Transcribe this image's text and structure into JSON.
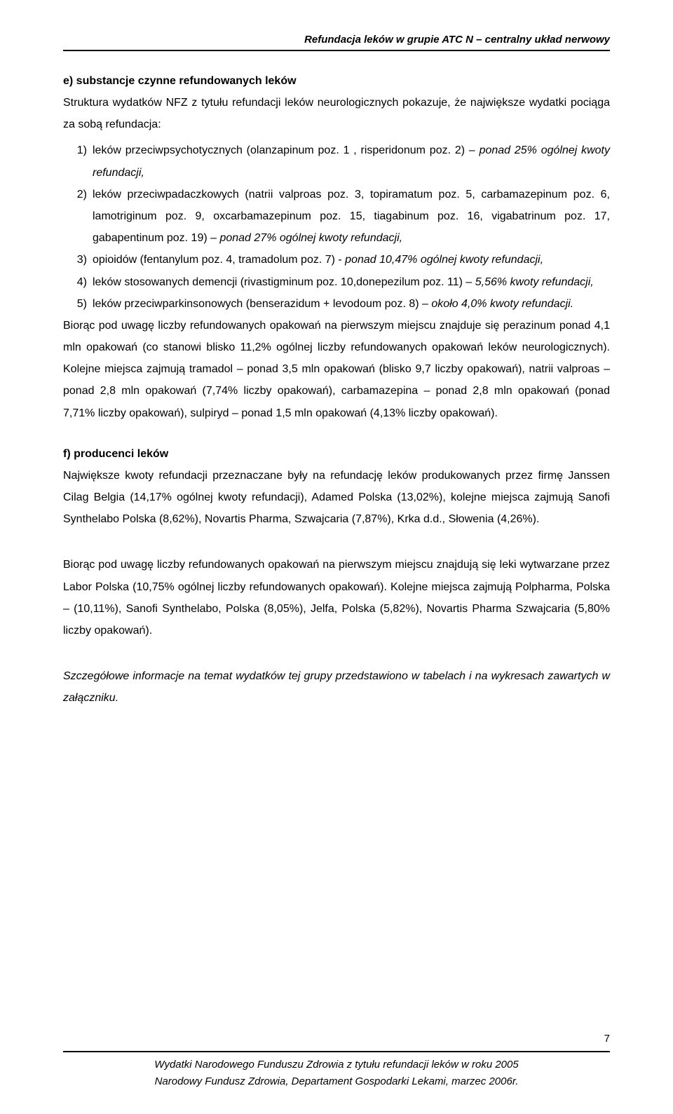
{
  "header": {
    "running_title": "Refundacja leków w grupie ATC N – centralny układ nerwowy"
  },
  "section_e": {
    "title": "e) substancje czynne refundowanych leków",
    "intro": "Struktura wydatków NFZ z tytułu refundacji leków neurologicznych pokazuje, że największe wydatki pociąga za sobą refundacja:",
    "items": [
      {
        "num": "1)",
        "text_a": "leków przeciwpsychotycznych (olanzapinum poz. 1 , risperidonum poz. 2) –",
        "italic_a": " ponad 25% ogólnej kwoty refundacji,"
      },
      {
        "num": "2)",
        "text_a": "leków przeciwpadaczkowych (natrii valproas poz. 3, topiramatum poz. 5, carbamazepinum poz. 6, lamotriginum poz. 9, oxcarbamazepinum poz. 15, tiagabinum poz. 16, vigabatrinum poz. 17, gabapentinum poz. 19) –",
        "italic_a": " ponad 27% ogólnej kwoty refundacji,"
      },
      {
        "num": "3)",
        "text_a": "opioidów (fentanylum poz. 4, tramadolum poz. 7) - ",
        "italic_a": "ponad 10,47% ogólnej kwoty refundacji,"
      },
      {
        "num": "4)",
        "text_a": "leków stosowanych demencji (rivastigminum poz. 10,donepezilum poz. 11) –",
        "italic_a": " 5,56% kwoty refundacji,"
      },
      {
        "num": "5)",
        "text_a": "leków przeciwparkinsonowych (benserazidum + levodoum poz. 8) –",
        "italic_a": " około 4,0% kwoty refundacji."
      }
    ],
    "para2": "Biorąc pod uwagę liczby refundowanych opakowań na pierwszym miejscu znajduje się perazinum ponad 4,1 mln  opakowań (co stanowi blisko 11,2% ogólnej liczby refundowanych opakowań leków neurologicznych). Kolejne miejsca zajmują tramadol – ponad 3,5 mln opakowań (blisko 9,7 liczby opakowań), natrii valproas – ponad 2,8 mln opakowań (7,74% liczby opakowań), carbamazepina – ponad 2,8 mln opakowań (ponad 7,71% liczby opakowań), sulpiryd – ponad 1,5 mln opakowań (4,13% liczby opakowań)."
  },
  "section_f": {
    "title": "f) producenci leków",
    "para1": "Największe kwoty refundacji przeznaczane były na refundację leków produkowanych przez firmę Janssen Cilag Belgia (14,17% ogólnej kwoty refundacji), Adamed Polska (13,02%), kolejne miejsca zajmują Sanofi Synthelabo Polska (8,62%), Novartis Pharma, Szwajcaria (7,87%), Krka d.d., Słowenia (4,26%).",
    "para2": "Biorąc pod uwagę liczby refundowanych opakowań na pierwszym miejscu znajdują się leki wytwarzane przez Labor Polska (10,75% ogólnej liczby refundowanych opakowań). Kolejne miejsca zajmują Polpharma, Polska – (10,11%), Sanofi Synthelabo, Polska (8,05%), Jelfa, Polska (5,82%), Novartis Pharma Szwajcaria (5,80% liczby opakowań)."
  },
  "closing": {
    "text": "Szczegółowe informacje na temat wydatków tej grupy przedstawiono w tabelach i na wykresach zawartych w załączniku."
  },
  "footer": {
    "line1": "Wydatki Narodowego Funduszu Zdrowia z tytułu refundacji leków w roku 2005",
    "line2": "Narodowy Fundusz Zdrowia, Departament Gospodarki Lekami, marzec 2006r.",
    "page": "7"
  }
}
